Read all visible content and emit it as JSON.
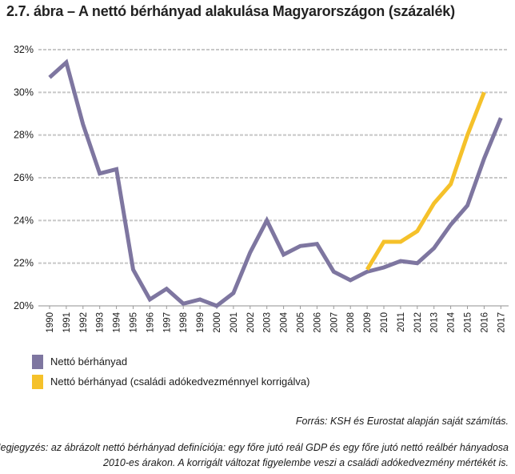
{
  "title": "2.7. ábra – A nettó bérhányad alakulása Magyarországon (százalék)",
  "source": "Forrás: KSH és Eurostat alapján saját számítás.",
  "note_line1": "Megjegyzés: az ábrázolt nettó bérhányad definíciója: egy főre jutó reál GDP és egy főre jutó nettó reálbér hányadosa",
  "note_line2": "2010-es árakon. A korrigált változat figyelembe veszi a családi adókedvezmény mértékét is.",
  "chart_data": {
    "type": "line",
    "title": "2.7. ábra – A nettó bérhányad alakulása Magyarországon (százalék)",
    "xlabel": "",
    "ylabel": "",
    "ylim": [
      20,
      32
    ],
    "yticks": [
      20,
      22,
      24,
      26,
      28,
      30,
      32
    ],
    "ytick_labels": [
      "20%",
      "22%",
      "24%",
      "26%",
      "28%",
      "30%",
      "32%"
    ],
    "grid": "horizontal dashed",
    "legend_position": "bottom-left",
    "x": [
      "1990",
      "1991",
      "1992",
      "1993",
      "1994",
      "1995",
      "1996",
      "1997",
      "1998",
      "1999",
      "2000",
      "2001",
      "2002",
      "2003",
      "2004",
      "2005",
      "2006",
      "2007",
      "2008",
      "2009",
      "2010",
      "2011",
      "2012",
      "2013",
      "2014",
      "2015",
      "2016",
      "2017"
    ],
    "series": [
      {
        "name": "Nettó bérhányad",
        "color": "#7e76a0",
        "values": [
          30.7,
          31.4,
          28.5,
          26.2,
          26.4,
          21.7,
          20.3,
          20.8,
          20.1,
          20.3,
          20.0,
          20.6,
          22.5,
          24.0,
          22.4,
          22.8,
          22.9,
          21.6,
          21.2,
          21.6,
          21.8,
          22.1,
          22.0,
          22.7,
          23.8,
          24.7,
          26.9,
          28.8
        ]
      },
      {
        "name": "Nettó bérhányad (családi adókedvezménnyel korrigálva)",
        "color": "#f5c12a",
        "values": [
          null,
          null,
          null,
          null,
          null,
          null,
          null,
          null,
          null,
          null,
          null,
          null,
          null,
          null,
          null,
          null,
          null,
          null,
          null,
          21.7,
          23.0,
          23.0,
          23.5,
          24.8,
          25.7,
          28.0,
          30.0,
          null
        ]
      }
    ]
  }
}
